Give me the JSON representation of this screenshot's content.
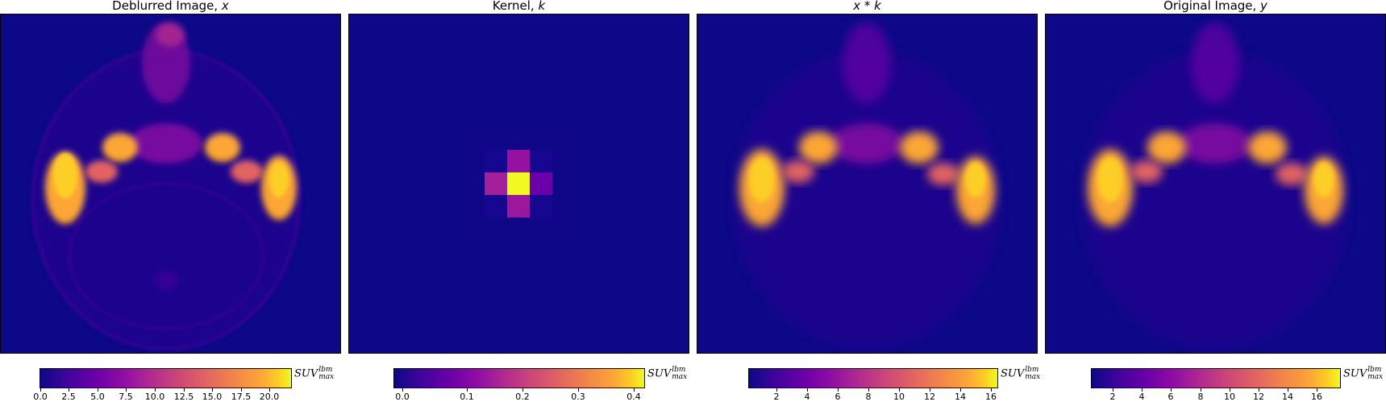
{
  "panels": [
    {
      "title": "Deblurred Image, ",
      "var": "x",
      "colorbar": {
        "ticks": [
          "0.0",
          "2.5",
          "5.0",
          "7.5",
          "10.0",
          "12.5",
          "15.0",
          "17.5",
          "20.0"
        ],
        "unit_base": "SUV",
        "unit_sup": "lbm",
        "unit_sub": "max",
        "colormap": "plasma"
      }
    },
    {
      "title": "Kernel, ",
      "var": "k",
      "colorbar": {
        "ticks": [
          "0.0",
          "0.1",
          "0.2",
          "0.3",
          "0.4"
        ],
        "unit_base": "SUV",
        "unit_sup": "lbm",
        "unit_sub": "max",
        "colormap": "plasma"
      }
    },
    {
      "title": "",
      "var": "x * k",
      "colorbar": {
        "ticks": [
          "2",
          "4",
          "6",
          "8",
          "10",
          "12",
          "14",
          "16"
        ],
        "unit_base": "SUV",
        "unit_sup": "lbm",
        "unit_sub": "max",
        "colormap": "plasma"
      }
    },
    {
      "title": "Original Image, ",
      "var": "y",
      "colorbar": {
        "ticks": [
          "2",
          "4",
          "6",
          "8",
          "10",
          "12",
          "14",
          "16"
        ],
        "unit_base": "SUV",
        "unit_sup": "lbm",
        "unit_sub": "max",
        "colormap": "plasma"
      }
    }
  ],
  "colors": {
    "low": "#0d0887",
    "mid": "#cc4778",
    "high": "#f0f921"
  }
}
